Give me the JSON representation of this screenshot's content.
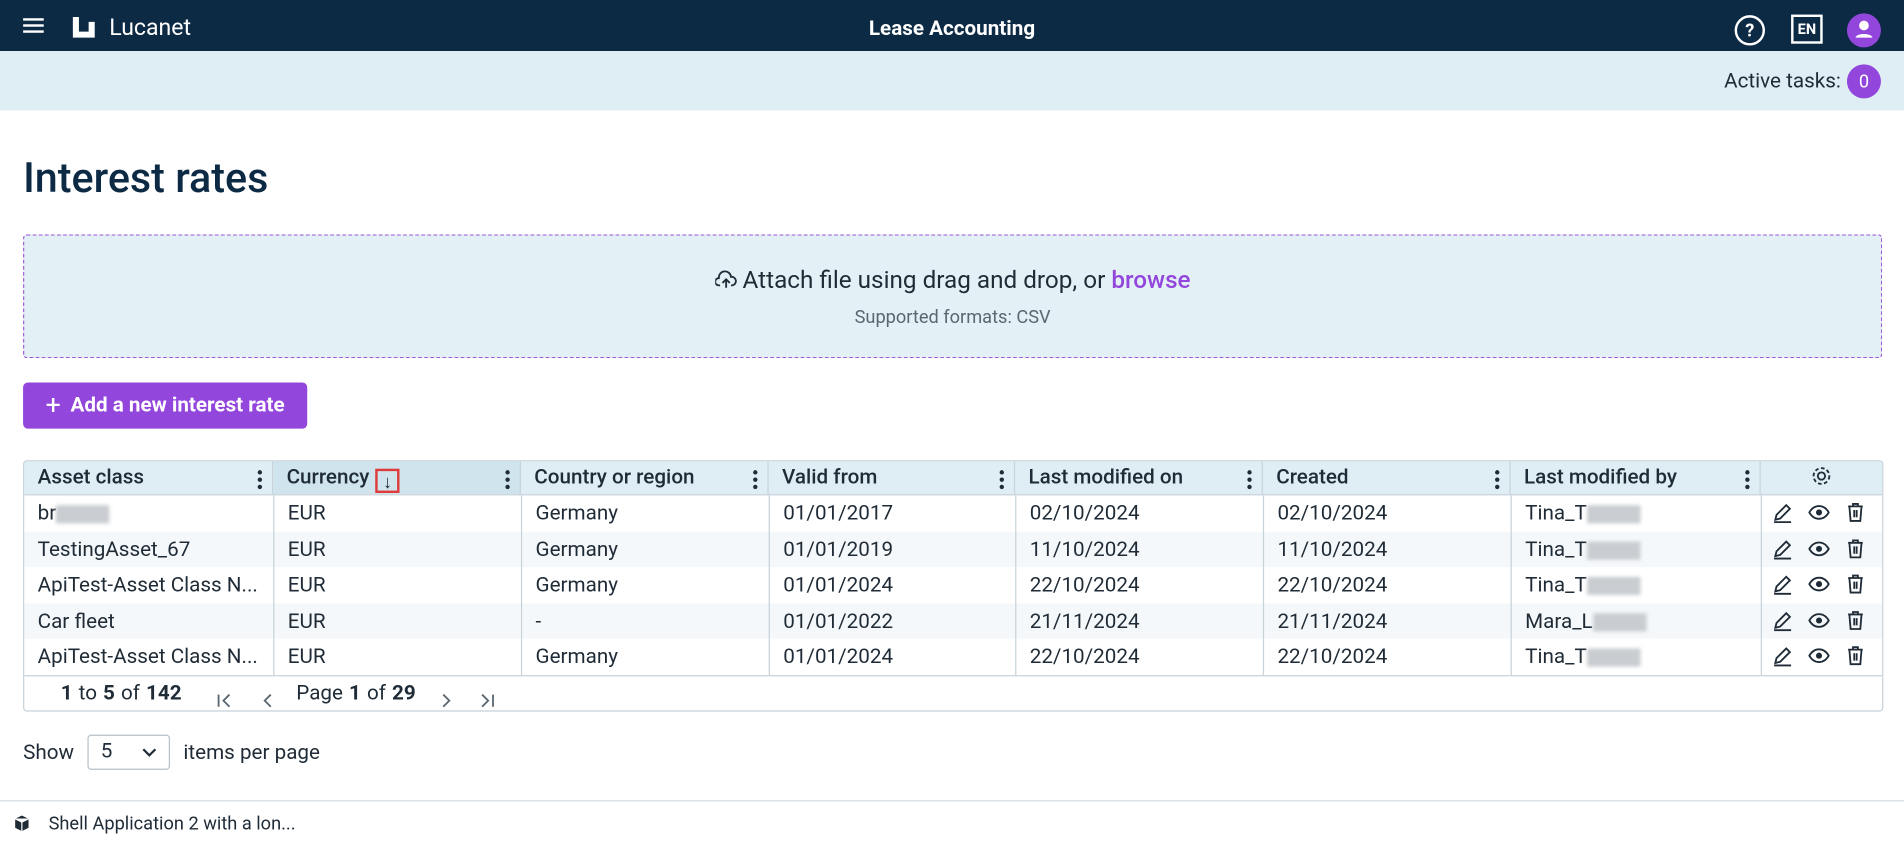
{
  "header": {
    "brand": "Lucanet",
    "app_title": "Lease Accounting",
    "language": "EN"
  },
  "tasks": {
    "label": "Active tasks:",
    "count": "0"
  },
  "page_title": "Interest rates",
  "upload": {
    "text": "Attach file using drag and drop, or",
    "link": "browse",
    "formats": "Supported formats: CSV"
  },
  "add_button": "Add a new interest rate",
  "table": {
    "columns": [
      "Asset class",
      "Currency",
      "Country or region",
      "Valid from",
      "Last modified on",
      "Created",
      "Last modified by"
    ],
    "rows": [
      [
        "br",
        "EUR",
        "Germany",
        "01/01/2017",
        "02/10/2024",
        "02/10/2024",
        "Tina_T"
      ],
      [
        "TestingAsset_67",
        "EUR",
        "Germany",
        "01/01/2019",
        "11/10/2024",
        "11/10/2024",
        "Tina_T"
      ],
      [
        "ApiTest-Asset Class N...",
        "EUR",
        "Germany",
        "01/01/2024",
        "22/10/2024",
        "22/10/2024",
        "Tina_T"
      ],
      [
        "Car fleet",
        "EUR",
        "-",
        "01/01/2022",
        "21/11/2024",
        "21/11/2024",
        "Mara_L"
      ],
      [
        "ApiTest-Asset Class N...",
        "EUR",
        "Germany",
        "01/01/2024",
        "22/10/2024",
        "22/10/2024",
        "Tina_T"
      ]
    ]
  },
  "pagination": {
    "from": "1",
    "to_word": "to",
    "to": "5",
    "of_word": "of",
    "total": "142",
    "page_word": "Page",
    "page": "1",
    "of_page_word": "of",
    "pages": "29"
  },
  "page_size": {
    "show": "Show",
    "value": "5",
    "suffix": "items per page"
  },
  "footer": {
    "app": "Shell Application 2 with a lon..."
  }
}
